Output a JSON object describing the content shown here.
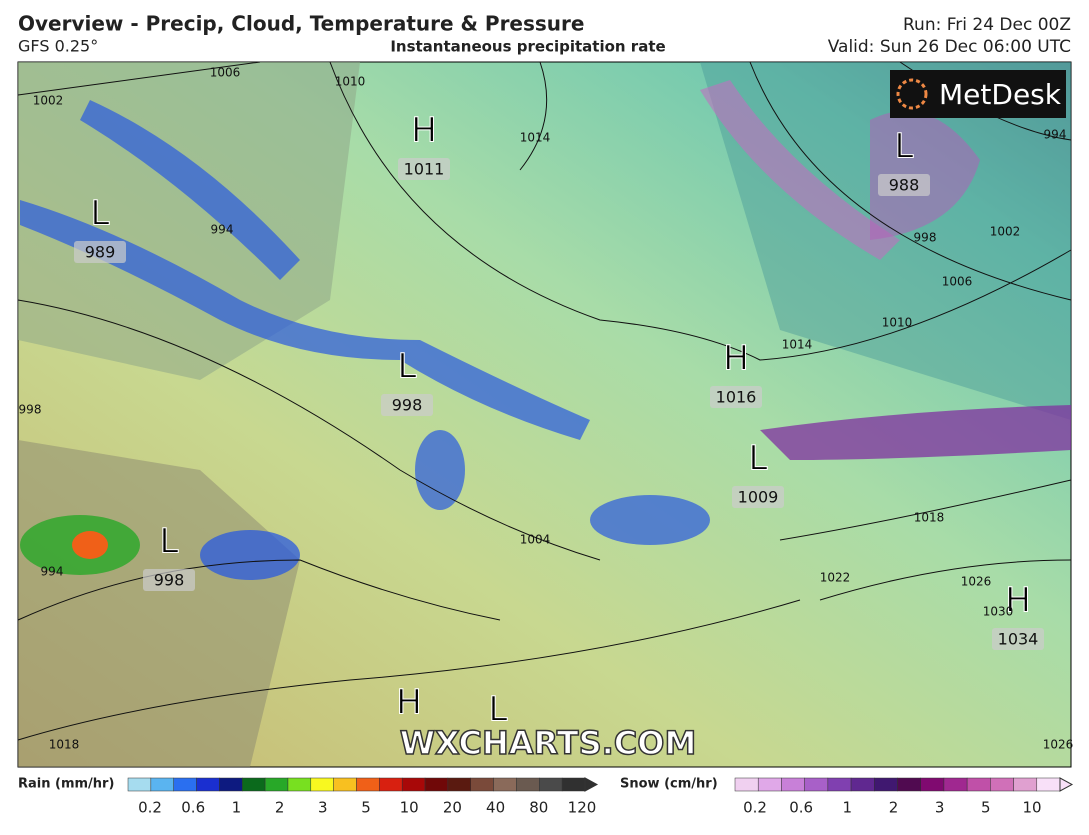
{
  "header": {
    "title": "Overview - Precip, Cloud, Temperature & Pressure",
    "model": "GFS 0.25°",
    "subtitle": "Instantaneous precipitation rate",
    "run": "Run: Fri 24 Dec 00Z",
    "valid": "Valid: Sun 26 Dec 06:00 UTC"
  },
  "map": {
    "logo": "MetDesk",
    "watermark": "WXCHARTS.COM",
    "centers": [
      {
        "kind": "H",
        "value": 1011
      },
      {
        "kind": "L",
        "value": 989
      },
      {
        "kind": "L",
        "value": 998
      },
      {
        "kind": "H",
        "value": 1016
      },
      {
        "kind": "L",
        "value": 988
      },
      {
        "kind": "L",
        "value": 1009
      },
      {
        "kind": "L",
        "value": 998
      },
      {
        "kind": "H",
        "value": 1034
      },
      {
        "kind": "H"
      },
      {
        "kind": "L"
      }
    ],
    "isobar_labels": [
      1006,
      1002,
      1010,
      1014,
      994,
      998,
      994,
      1018,
      1004,
      998,
      1002,
      1006,
      1010,
      1014,
      994,
      1018,
      1022,
      1026,
      1030,
      1026
    ]
  },
  "legend": {
    "rain": {
      "label": "Rain (mm/hr)",
      "ticks": [
        0.2,
        0.6,
        1,
        2,
        3,
        5,
        10,
        20,
        40,
        80,
        120
      ],
      "colors": [
        "#a6dcef",
        "#5ab4f0",
        "#2a6ff0",
        "#1a2fd0",
        "#0d1a80",
        "#0b6a1c",
        "#28a828",
        "#78e020",
        "#f8f820",
        "#f8c020",
        "#f06018",
        "#d82010",
        "#a80808",
        "#700808",
        "#5a1a10",
        "#7a4a3a",
        "#8a6a5a",
        "#6a5a50",
        "#4a4a4a",
        "#303030"
      ]
    },
    "snow": {
      "label": "Snow (cm/hr)",
      "ticks": [
        0.2,
        0.6,
        1,
        2,
        3,
        5,
        10
      ],
      "colors": [
        "#f0d0f0",
        "#e0a8e8",
        "#c880d8",
        "#a860c8",
        "#8040b0",
        "#602890",
        "#401870",
        "#500a50",
        "#800a70",
        "#a02890",
        "#c050a8",
        "#d070b8",
        "#e0a0d0",
        "#f8e0f8"
      ]
    }
  }
}
